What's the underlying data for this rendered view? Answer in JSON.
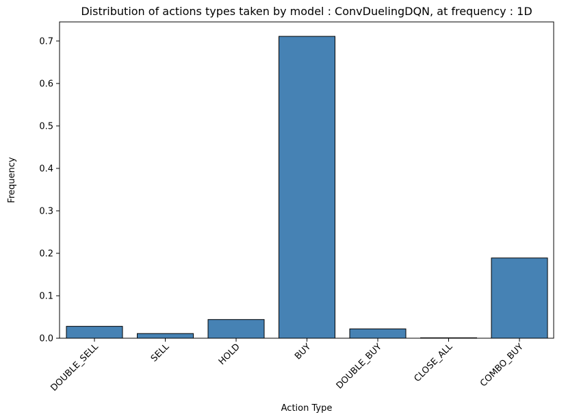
{
  "chart_data": {
    "type": "bar",
    "title": "Distribution of actions types taken by model : ConvDuelingDQN, at frequency : 1D",
    "xlabel": "Action Type",
    "ylabel": "Frequency",
    "categories": [
      "DOUBLE_SELL",
      "SELL",
      "HOLD",
      "BUY",
      "DOUBLE_BUY",
      "CLOSE_ALL",
      "COMBO_BUY"
    ],
    "values": [
      0.028,
      0.011,
      0.044,
      0.711,
      0.022,
      0.001,
      0.189
    ],
    "ylim": [
      0,
      0.745
    ],
    "yticks": [
      "0.0",
      "0.1",
      "0.2",
      "0.3",
      "0.4",
      "0.5",
      "0.6",
      "0.7"
    ],
    "bar_color": "#4682b4",
    "edge_color": "#000000",
    "grid": false,
    "x_tick_rotation_deg": 45
  }
}
